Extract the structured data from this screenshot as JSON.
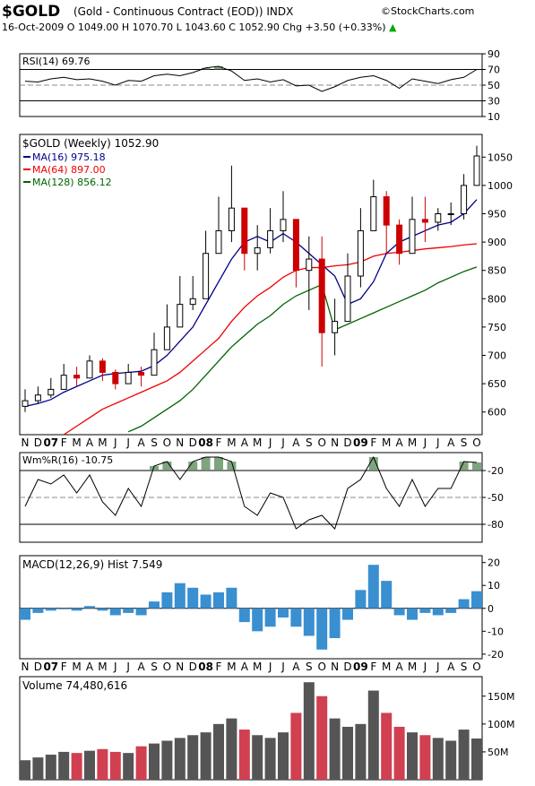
{
  "header": {
    "symbol": "$GOLD",
    "description": "(Gold - Continuous Contract (EOD)) INDX",
    "brand": "©StockCharts.com",
    "quote": "16-Oct-2009    O 1049.00  H 1070.70  L 1043.60  C 1052.90  Chg +3.50 (+0.33%)",
    "up_arrow": "▲"
  },
  "colors": {
    "up": "#000000",
    "down": "#cc0000",
    "ma16": "#00008b",
    "ma64": "#ee0000",
    "ma128": "#006400",
    "fill_green": "#5f8f5f",
    "hist": "#3a8fd0",
    "vol_red": "#d04050",
    "vol_gray": "#555555"
  },
  "chart_data": [
    {
      "type": "line",
      "panel": "rsi",
      "title": "RSI(14) 69.76",
      "ylim": [
        10,
        90
      ],
      "ticks": [
        "90",
        "70",
        "50",
        "30",
        "10"
      ],
      "tick_values": [
        90,
        70,
        50,
        30,
        10
      ],
      "ref_lines": [
        70,
        30
      ],
      "x": [
        "Nov-06",
        "Dec-06",
        "Jan-07",
        "Feb-07",
        "Mar-07",
        "Apr-07",
        "May-07",
        "Jun-07",
        "Jul-07",
        "Aug-07",
        "Sep-07",
        "Oct-07",
        "Nov-07",
        "Dec-07",
        "Jan-08",
        "Feb-08",
        "Mar-08",
        "Apr-08",
        "May-08",
        "Jun-08",
        "Jul-08",
        "Aug-08",
        "Sep-08",
        "Oct-08",
        "Nov-08",
        "Dec-08",
        "Jan-09",
        "Feb-09",
        "Mar-09",
        "Apr-09",
        "May-09",
        "Jun-09",
        "Jul-09",
        "Aug-09",
        "Sep-09",
        "Oct-09"
      ],
      "values": [
        55,
        54,
        58,
        60,
        57,
        58,
        55,
        50,
        56,
        55,
        62,
        64,
        62,
        66,
        72,
        74,
        68,
        56,
        58,
        54,
        57,
        49,
        50,
        42,
        48,
        56,
        60,
        62,
        56,
        46,
        58,
        55,
        52,
        57,
        60,
        70
      ]
    },
    {
      "type": "candlestick",
      "panel": "price",
      "title": "$GOLD (Weekly) 1052.90",
      "legend": [
        {
          "label": "MA(16) 975.18",
          "color_key": "ma16"
        },
        {
          "label": "MA(64) 897.00",
          "color_key": "ma64"
        },
        {
          "label": "MA(128) 856.12",
          "color_key": "ma128"
        }
      ],
      "ylim": [
        560,
        1090
      ],
      "ticks": [
        "1050",
        "1000",
        "950",
        "900",
        "850",
        "800",
        "750",
        "700",
        "650",
        "600"
      ],
      "tick_values": [
        1050,
        1000,
        950,
        900,
        850,
        800,
        750,
        700,
        650,
        600
      ],
      "x": [
        "Nov-06",
        "Dec-06",
        "Jan-07",
        "Feb-07",
        "Mar-07",
        "Apr-07",
        "May-07",
        "Jun-07",
        "Jul-07",
        "Aug-07",
        "Sep-07",
        "Oct-07",
        "Nov-07",
        "Dec-07",
        "Jan-08",
        "Feb-08",
        "Mar-08",
        "Apr-08",
        "May-08",
        "Jun-08",
        "Jul-08",
        "Aug-08",
        "Sep-08",
        "Oct-08",
        "Nov-08",
        "Dec-08",
        "Jan-09",
        "Feb-09",
        "Mar-09",
        "Apr-09",
        "May-09",
        "Jun-09",
        "Jul-09",
        "Aug-09",
        "Sep-09",
        "Oct-09"
      ],
      "close": [
        620,
        630,
        640,
        665,
        660,
        690,
        670,
        650,
        670,
        665,
        710,
        750,
        790,
        800,
        880,
        920,
        960,
        880,
        890,
        920,
        940,
        850,
        870,
        740,
        760,
        840,
        920,
        980,
        930,
        880,
        940,
        935,
        950,
        950,
        1000,
        1052
      ],
      "high": [
        640,
        645,
        660,
        685,
        680,
        700,
        695,
        675,
        685,
        680,
        740,
        790,
        840,
        840,
        920,
        980,
        1035,
        950,
        930,
        960,
        990,
        920,
        910,
        910,
        800,
        880,
        960,
        1010,
        990,
        940,
        980,
        980,
        960,
        970,
        1020,
        1070
      ],
      "low": [
        600,
        615,
        625,
        645,
        645,
        665,
        655,
        640,
        650,
        645,
        675,
        720,
        760,
        780,
        850,
        880,
        900,
        850,
        850,
        880,
        900,
        820,
        780,
        680,
        700,
        760,
        820,
        920,
        880,
        860,
        880,
        900,
        920,
        930,
        940,
        1040
      ],
      "ma16": [
        610,
        615,
        622,
        635,
        645,
        655,
        665,
        668,
        670,
        672,
        682,
        700,
        725,
        750,
        790,
        830,
        870,
        900,
        910,
        900,
        915,
        900,
        880,
        860,
        840,
        790,
        800,
        830,
        880,
        900,
        910,
        920,
        930,
        935,
        950,
        975
      ],
      "ma64": [
        520,
        530,
        545,
        560,
        575,
        590,
        605,
        615,
        625,
        635,
        645,
        655,
        670,
        690,
        710,
        730,
        760,
        785,
        805,
        820,
        838,
        850,
        855,
        855,
        858,
        860,
        865,
        875,
        880,
        882,
        885,
        888,
        890,
        892,
        895,
        897
      ],
      "ma128": [
        480,
        490,
        500,
        510,
        520,
        535,
        545,
        555,
        565,
        575,
        590,
        605,
        620,
        640,
        665,
        690,
        715,
        735,
        755,
        770,
        790,
        805,
        815,
        825,
        745,
        755,
        765,
        775,
        785,
        795,
        805,
        815,
        828,
        838,
        848,
        856
      ]
    },
    {
      "type": "line",
      "panel": "willr",
      "title": "Wm%R(16) -10.75",
      "ylim": [
        -100,
        0
      ],
      "ticks": [
        "-20",
        "-50",
        "-80"
      ],
      "tick_values": [
        -20,
        -50,
        -80
      ],
      "ref_lines": [
        -20,
        -80
      ],
      "x": [
        "Nov-06",
        "Dec-06",
        "Jan-07",
        "Feb-07",
        "Mar-07",
        "Apr-07",
        "May-07",
        "Jun-07",
        "Jul-07",
        "Aug-07",
        "Sep-07",
        "Oct-07",
        "Nov-07",
        "Dec-07",
        "Jan-08",
        "Feb-08",
        "Mar-08",
        "Apr-08",
        "May-08",
        "Jun-08",
        "Jul-08",
        "Aug-08",
        "Sep-08",
        "Oct-08",
        "Nov-08",
        "Dec-08",
        "Jan-09",
        "Feb-09",
        "Mar-09",
        "Apr-09",
        "May-09",
        "Jun-09",
        "Jul-09",
        "Aug-09",
        "Sep-09",
        "Oct-09"
      ],
      "values": [
        -60,
        -30,
        -35,
        -25,
        -45,
        -25,
        -55,
        -70,
        -40,
        -60,
        -15,
        -10,
        -30,
        -10,
        -5,
        -5,
        -10,
        -60,
        -70,
        -45,
        -50,
        -85,
        -75,
        -70,
        -85,
        -40,
        -30,
        -5,
        -40,
        -60,
        -30,
        -60,
        -40,
        -40,
        -10,
        -11
      ]
    },
    {
      "type": "bar",
      "panel": "macd",
      "title": "MACD(12,26,9) Hist 7.549",
      "ylim": [
        -22,
        23
      ],
      "ticks": [
        "20",
        "10",
        "0",
        "-10",
        "-20"
      ],
      "tick_values": [
        20,
        10,
        0,
        -10,
        -20
      ],
      "x": [
        "Nov-06",
        "Dec-06",
        "Jan-07",
        "Feb-07",
        "Mar-07",
        "Apr-07",
        "May-07",
        "Jun-07",
        "Jul-07",
        "Aug-07",
        "Sep-07",
        "Oct-07",
        "Nov-07",
        "Dec-07",
        "Jan-08",
        "Feb-08",
        "Mar-08",
        "Apr-08",
        "May-08",
        "Jun-08",
        "Jul-08",
        "Aug-08",
        "Sep-08",
        "Oct-08",
        "Nov-08",
        "Dec-08",
        "Jan-09",
        "Feb-09",
        "Mar-09",
        "Apr-09",
        "May-09",
        "Jun-09",
        "Jul-09",
        "Aug-09",
        "Sep-09",
        "Oct-09"
      ],
      "values": [
        -5,
        -2,
        -1,
        0,
        -1,
        1,
        -1,
        -3,
        -2,
        -3,
        3,
        7,
        11,
        9,
        6,
        7,
        9,
        -6,
        -10,
        -8,
        -4,
        -8,
        -12,
        -18,
        -13,
        -5,
        8,
        19,
        12,
        -3,
        -5,
        -2,
        -3,
        -2,
        4,
        7.5
      ]
    },
    {
      "type": "bar",
      "panel": "volume",
      "title": "Volume 74,480,616",
      "ylim": [
        0,
        185
      ],
      "ticks": [
        "150M",
        "100M",
        "50M"
      ],
      "tick_values": [
        150,
        100,
        50
      ],
      "x": [
        "Nov-06",
        "Dec-06",
        "Jan-07",
        "Feb-07",
        "Mar-07",
        "Apr-07",
        "May-07",
        "Jun-07",
        "Jul-07",
        "Aug-07",
        "Sep-07",
        "Oct-07",
        "Nov-07",
        "Dec-07",
        "Jan-08",
        "Feb-08",
        "Mar-08",
        "Apr-08",
        "May-08",
        "Jun-08",
        "Jul-08",
        "Aug-08",
        "Sep-08",
        "Oct-08",
        "Nov-08",
        "Dec-08",
        "Jan-09",
        "Feb-09",
        "Mar-09",
        "Apr-09",
        "May-09",
        "Jun-09",
        "Jul-09",
        "Aug-09",
        "Sep-09",
        "Oct-09"
      ],
      "values": [
        35,
        40,
        45,
        50,
        48,
        52,
        55,
        50,
        48,
        60,
        65,
        70,
        75,
        80,
        85,
        100,
        110,
        90,
        80,
        75,
        85,
        120,
        175,
        150,
        110,
        95,
        100,
        160,
        120,
        95,
        85,
        80,
        75,
        70,
        90,
        74
      ]
    }
  ],
  "x_axis_labels": [
    {
      "label": "N",
      "bold": false
    },
    {
      "label": "D",
      "bold": false
    },
    {
      "label": "07",
      "bold": true
    },
    {
      "label": "F",
      "bold": false
    },
    {
      "label": "M",
      "bold": false
    },
    {
      "label": "A",
      "bold": false
    },
    {
      "label": "M",
      "bold": false
    },
    {
      "label": "J",
      "bold": false
    },
    {
      "label": "J",
      "bold": false
    },
    {
      "label": "A",
      "bold": false
    },
    {
      "label": "S",
      "bold": false
    },
    {
      "label": "O",
      "bold": false
    },
    {
      "label": "N",
      "bold": false
    },
    {
      "label": "D",
      "bold": false
    },
    {
      "label": "08",
      "bold": true
    },
    {
      "label": "F",
      "bold": false
    },
    {
      "label": "M",
      "bold": false
    },
    {
      "label": "A",
      "bold": false
    },
    {
      "label": "M",
      "bold": false
    },
    {
      "label": "J",
      "bold": false
    },
    {
      "label": "J",
      "bold": false
    },
    {
      "label": "A",
      "bold": false
    },
    {
      "label": "S",
      "bold": false
    },
    {
      "label": "O",
      "bold": false
    },
    {
      "label": "N",
      "bold": false
    },
    {
      "label": "D",
      "bold": false
    },
    {
      "label": "09",
      "bold": true
    },
    {
      "label": "F",
      "bold": false
    },
    {
      "label": "M",
      "bold": false
    },
    {
      "label": "A",
      "bold": false
    },
    {
      "label": "M",
      "bold": false
    },
    {
      "label": "J",
      "bold": false
    },
    {
      "label": "J",
      "bold": false
    },
    {
      "label": "A",
      "bold": false
    },
    {
      "label": "S",
      "bold": false
    },
    {
      "label": "O",
      "bold": false
    }
  ]
}
